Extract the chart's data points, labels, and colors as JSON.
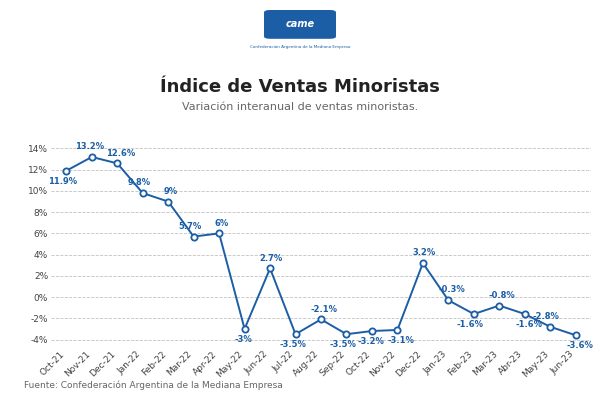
{
  "title": "Índice de Ventas Minoristas",
  "subtitle": "Variación interanual de ventas minoristas.",
  "footer": "Fuente: Confederación Argentina de la Mediana Empresa",
  "categories": [
    "Oct-21",
    "Nov-21",
    "Dec-21",
    "Jan-22",
    "Feb-22",
    "Mar-22",
    "Apr-22",
    "May-22",
    "Jun-22",
    "Jul-22",
    "Aug-22",
    "Sep-22",
    "Oct-22",
    "Nov-22",
    "Dec-22",
    "Jan-23",
    "Feb-23",
    "Mar-23",
    "Abr-23",
    "May-23",
    "Jun-23"
  ],
  "values": [
    11.9,
    13.2,
    12.6,
    9.8,
    9.0,
    5.7,
    6.0,
    -3.0,
    2.7,
    -3.5,
    -2.1,
    -3.5,
    -3.2,
    -3.1,
    3.2,
    -0.3,
    -1.6,
    -0.8,
    -1.6,
    -2.8,
    -3.6
  ],
  "labels": [
    "11.9%",
    "13.2%",
    "12.6%",
    "9.8%",
    "9%",
    "5.7%",
    "6%",
    "-3%",
    "2.7%",
    "-3.5%",
    "-2.1%",
    "-3.5%",
    "-3.2%",
    "-3.1%",
    "3.2%",
    "-0.3%",
    "-1.6%",
    "-0.8%",
    "-1.6%",
    "-2.8%",
    "-3.6%"
  ],
  "label_above": [
    false,
    true,
    true,
    true,
    true,
    true,
    true,
    false,
    true,
    false,
    true,
    false,
    false,
    false,
    true,
    true,
    false,
    true,
    false,
    true,
    false
  ],
  "line_color": "#1b5ea6",
  "marker_facecolor": "#ffffff",
  "marker_edgecolor": "#1b5ea6",
  "label_color": "#1b5ea6",
  "grid_color": "#bbbbbb",
  "background_color": "#ffffff",
  "title_color": "#222222",
  "subtitle_color": "#666666",
  "footer_color": "#666666",
  "ylim": [
    -4.8,
    14.8
  ],
  "yticks": [
    -4,
    -2,
    0,
    2,
    4,
    6,
    8,
    10,
    12,
    14
  ],
  "title_fontsize": 13,
  "subtitle_fontsize": 8,
  "label_fontsize": 6,
  "tick_fontsize": 6.5,
  "footer_fontsize": 6.5,
  "logo_text": "came",
  "logo_sub": "Confederación Argentina de la Mediana Empresa"
}
